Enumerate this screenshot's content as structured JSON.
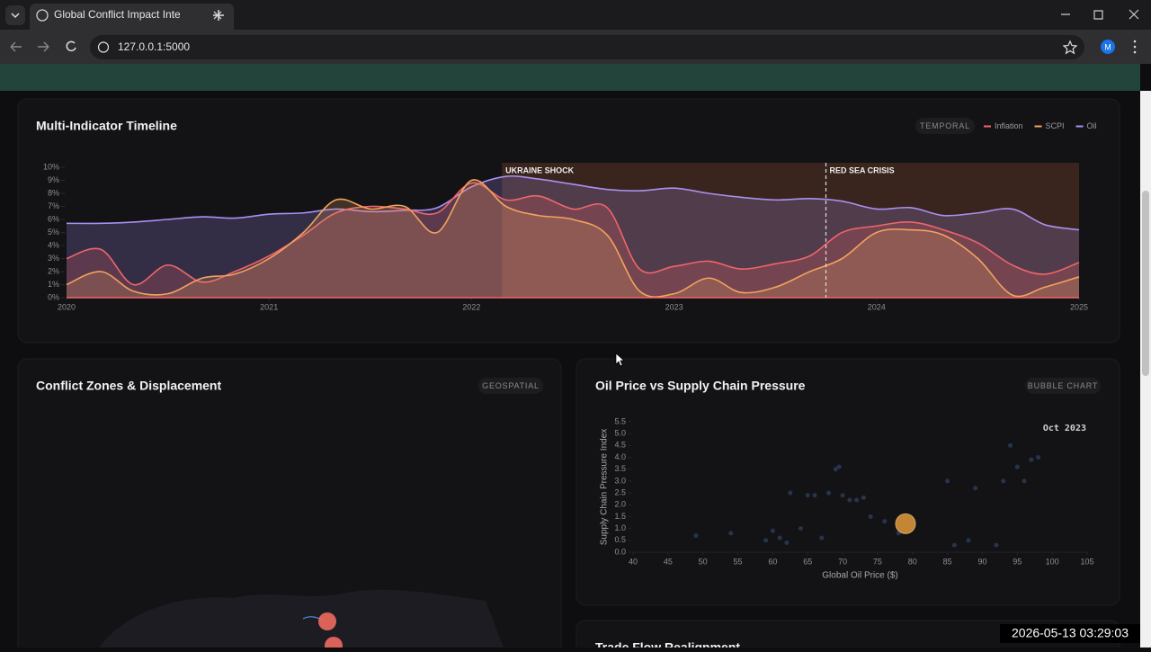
{
  "browser": {
    "tab_title": "Global Conflict Impact Intellige",
    "url": "127.0.0.1:5000",
    "profile": "M"
  },
  "overlay_timestamp": "2026-05-13 03:29:03",
  "map_panel": {
    "title": "Conflict Zones & Displacement",
    "badge": "GEOSPATIAL"
  },
  "trade_panel": {
    "title": "Trade Flow Realignment"
  },
  "chart_data": [
    {
      "type": "area",
      "title": "Multi-Indicator Timeline",
      "badge": "TEMPORAL",
      "x": [
        2020,
        2020.17,
        2020.33,
        2020.5,
        2020.67,
        2020.83,
        2021,
        2021.17,
        2021.33,
        2021.5,
        2021.67,
        2021.83,
        2022,
        2022.17,
        2022.33,
        2022.5,
        2022.67,
        2022.83,
        2023,
        2023.17,
        2023.33,
        2023.5,
        2023.67,
        2023.83,
        2024,
        2024.17,
        2024.33,
        2024.5,
        2024.67,
        2024.83,
        2025
      ],
      "series": [
        {
          "name": "Inflation",
          "color": "#f0656a",
          "values": [
            3.0,
            3.7,
            1.0,
            2.5,
            1.2,
            2.0,
            3.2,
            4.8,
            6.5,
            7.0,
            6.8,
            6.5,
            8.8,
            7.5,
            7.8,
            6.8,
            6.9,
            2.2,
            2.4,
            2.8,
            2.2,
            2.6,
            3.2,
            5.0,
            5.5,
            5.8,
            5.2,
            4.2,
            2.5,
            1.8,
            2.7
          ]
        },
        {
          "name": "SCPI",
          "color": "#f2a35e",
          "values": [
            1.0,
            2.0,
            0.5,
            0.3,
            1.5,
            1.8,
            3.0,
            5.0,
            7.5,
            6.8,
            7.0,
            5.0,
            9.0,
            7.0,
            6.3,
            6.0,
            4.8,
            0.5,
            0.3,
            1.5,
            0.4,
            0.8,
            2.0,
            3.0,
            5.0,
            5.2,
            4.8,
            3.0,
            0.2,
            0.8,
            1.6
          ]
        },
        {
          "name": "Oil",
          "color": "#a990f0",
          "values": [
            5.7,
            5.7,
            5.8,
            6.0,
            6.2,
            6.1,
            6.4,
            6.5,
            6.8,
            6.6,
            6.7,
            6.9,
            8.5,
            9.3,
            9.1,
            8.7,
            8.3,
            8.2,
            8.4,
            8.0,
            7.7,
            7.5,
            7.6,
            7.4,
            6.8,
            6.9,
            6.3,
            6.5,
            6.8,
            5.6,
            5.2
          ]
        }
      ],
      "xlim": [
        2020,
        2025
      ],
      "xticks": [
        2020,
        2021,
        2022,
        2023,
        2024,
        2025
      ],
      "ylim": [
        0,
        10
      ],
      "yticks": [
        {
          "value": 0,
          "label": "0%"
        },
        {
          "value": 1,
          "label": "1%"
        },
        {
          "value": 2,
          "label": "2%"
        },
        {
          "value": 3,
          "label": "3%"
        },
        {
          "value": 4,
          "label": "4%"
        },
        {
          "value": 5,
          "label": "5%"
        },
        {
          "value": 6,
          "label": "6%"
        },
        {
          "value": 7,
          "label": "7%"
        },
        {
          "value": 8,
          "label": "8%"
        },
        {
          "value": 9,
          "label": "9%"
        },
        {
          "value": 10,
          "label": "10%"
        }
      ],
      "annotations": [
        {
          "label": "UKRAINE SHOCK",
          "x": 2022.15
        },
        {
          "label": "RED SEA CRISIS",
          "x": 2023.75
        }
      ]
    },
    {
      "type": "scatter",
      "title": "Oil Price vs Supply Chain Pressure",
      "badge": "BUBBLE CHART",
      "x_label": "Global Oil Price ($)",
      "y_label": "Supply Chain Pressure Index",
      "annotation": "Oct 2023",
      "series": [
        {
          "color": "#3d5f8e",
          "x": [
            49,
            54,
            59,
            60,
            61,
            62,
            62.5,
            64,
            65,
            66,
            67,
            68,
            69,
            69.5,
            70,
            71,
            72,
            73,
            74,
            76,
            78,
            85,
            86,
            88,
            89,
            92,
            93,
            94,
            95,
            96,
            97,
            98
          ],
          "values": [
            0.7,
            0.8,
            0.5,
            0.9,
            0.6,
            0.4,
            2.5,
            1.0,
            2.4,
            2.4,
            0.6,
            2.5,
            3.5,
            3.6,
            2.4,
            2.2,
            2.2,
            2.3,
            1.5,
            1.3,
            0.8,
            3.0,
            0.3,
            0.5,
            2.7,
            0.3,
            3.0,
            4.5,
            3.6,
            3.0,
            3.9,
            4.0
          ]
        },
        {
          "color": "#e39a3a",
          "x": [
            79
          ],
          "values": [
            1.2
          ]
        }
      ],
      "xlim": [
        40,
        105
      ],
      "xticks": [
        40,
        45,
        50,
        55,
        60,
        65,
        70,
        75,
        80,
        85,
        90,
        95,
        100,
        105
      ],
      "ylim": [
        0,
        5.5
      ],
      "yticks": [
        {
          "value": 0,
          "label": "0.0"
        },
        0.5,
        {
          "value": 1,
          "label": "1.0"
        },
        1.5,
        {
          "value": 2,
          "label": "2.0"
        },
        2.5,
        {
          "value": 3,
          "label": "3.0"
        },
        3.5,
        {
          "value": 4,
          "label": "4.0"
        },
        4.5,
        {
          "value": 5,
          "label": "5.0"
        },
        5.5
      ]
    }
  ]
}
